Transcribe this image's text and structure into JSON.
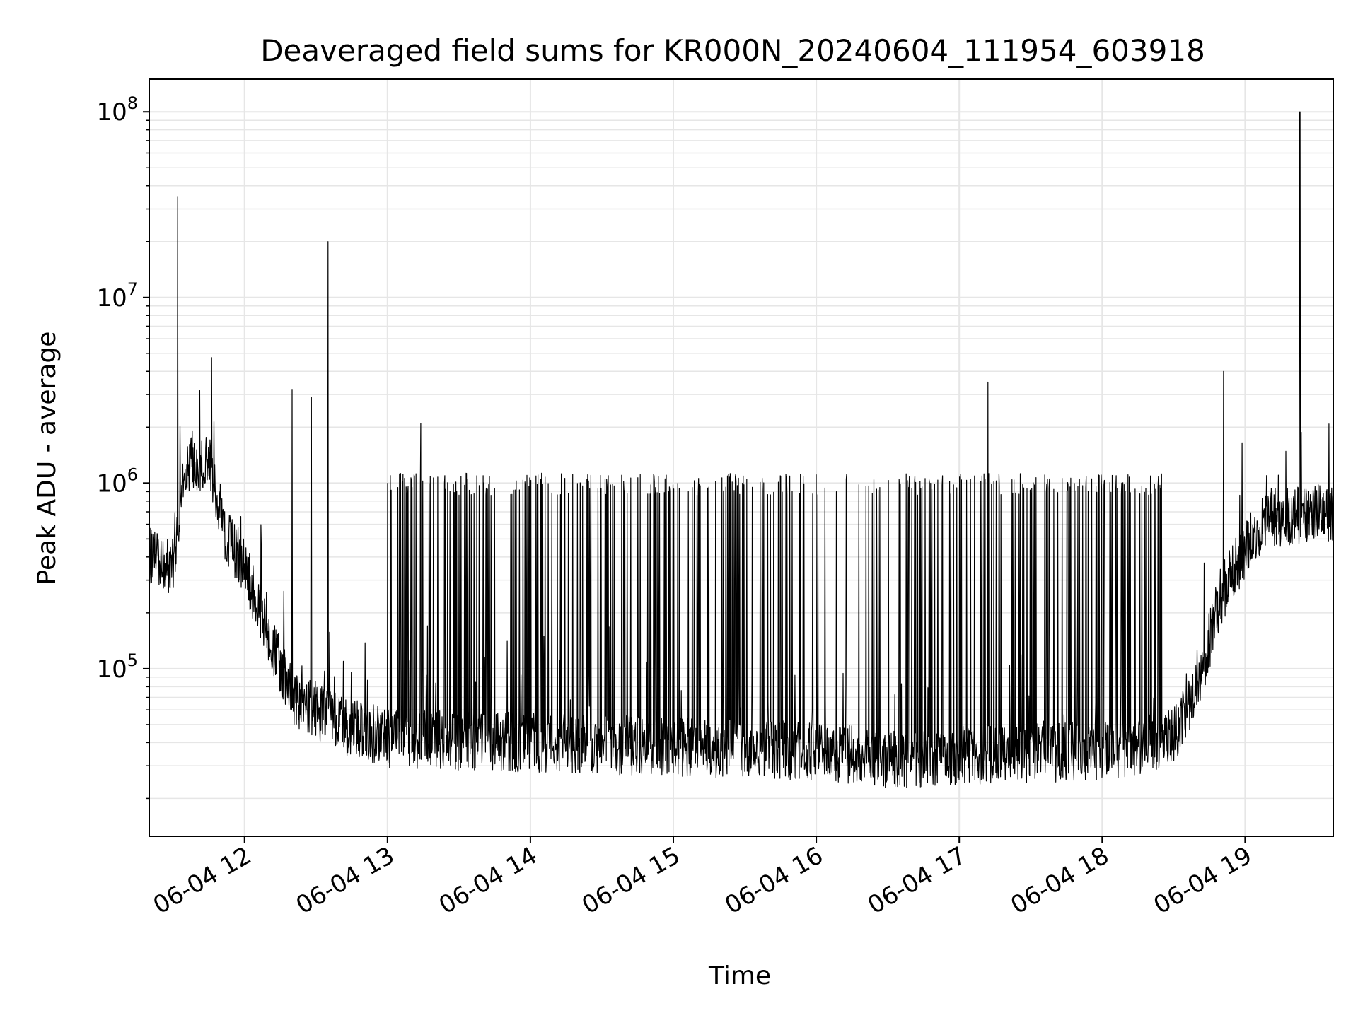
{
  "chart_data": {
    "type": "line",
    "title": "Deaveraged field sums for KR000N_20240604_111954_603918",
    "xlabel": "Time",
    "ylabel": "Peak ADU - average",
    "yscale": "log",
    "ylim": [
      12500,
      150000000
    ],
    "xlim": [
      "2024-06-04 11:20",
      "2024-06-04 19:37"
    ],
    "grid": true,
    "line_color": "#000000",
    "x_ticks": [
      {
        "time": "2024-06-04 12:00",
        "label": "06-04 12"
      },
      {
        "time": "2024-06-04 13:00",
        "label": "06-04 13"
      },
      {
        "time": "2024-06-04 14:00",
        "label": "06-04 14"
      },
      {
        "time": "2024-06-04 15:00",
        "label": "06-04 15"
      },
      {
        "time": "2024-06-04 16:00",
        "label": "06-04 16"
      },
      {
        "time": "2024-06-04 17:00",
        "label": "06-04 17"
      },
      {
        "time": "2024-06-04 18:00",
        "label": "06-04 18"
      },
      {
        "time": "2024-06-04 19:00",
        "label": "06-04 19"
      }
    ],
    "y_ticks": [
      {
        "value": 100000,
        "base": "10",
        "exp": "5"
      },
      {
        "value": 1000000,
        "base": "10",
        "exp": "6"
      },
      {
        "value": 10000000,
        "base": "10",
        "exp": "7"
      },
      {
        "value": 100000000,
        "base": "10",
        "exp": "8"
      }
    ],
    "baseline_profile": [
      {
        "time": "2024-06-04 11:20",
        "value": 400000
      },
      {
        "time": "2024-06-04 11:30",
        "value": 350000
      },
      {
        "time": "2024-06-04 11:35",
        "value": 1200000
      },
      {
        "time": "2024-06-04 11:45",
        "value": 1300000
      },
      {
        "time": "2024-06-04 11:50",
        "value": 600000
      },
      {
        "time": "2024-06-04 12:00",
        "value": 350000
      },
      {
        "time": "2024-06-04 12:10",
        "value": 150000
      },
      {
        "time": "2024-06-04 12:20",
        "value": 70000
      },
      {
        "time": "2024-06-04 12:40",
        "value": 50000
      },
      {
        "time": "2024-06-04 13:00",
        "value": 42000
      },
      {
        "time": "2024-06-04 14:00",
        "value": 40000
      },
      {
        "time": "2024-06-04 15:00",
        "value": 38000
      },
      {
        "time": "2024-06-04 16:00",
        "value": 36000
      },
      {
        "time": "2024-06-04 16:40",
        "value": 32000
      },
      {
        "time": "2024-06-04 17:00",
        "value": 34000
      },
      {
        "time": "2024-06-04 18:00",
        "value": 36000
      },
      {
        "time": "2024-06-04 18:30",
        "value": 42000
      },
      {
        "time": "2024-06-04 18:40",
        "value": 80000
      },
      {
        "time": "2024-06-04 18:50",
        "value": 250000
      },
      {
        "time": "2024-06-04 19:00",
        "value": 450000
      },
      {
        "time": "2024-06-04 19:10",
        "value": 650000
      },
      {
        "time": "2024-06-04 19:37",
        "value": 700000
      }
    ],
    "burst_level": 1000000,
    "burst_window": [
      "2024-06-04 13:00",
      "2024-06-04 18:25"
    ],
    "spikes": [
      {
        "time": "2024-06-04 11:32",
        "value": 35000000
      },
      {
        "time": "2024-06-04 12:35",
        "value": 20000000
      },
      {
        "time": "2024-06-04 12:20",
        "value": 3200000
      },
      {
        "time": "2024-06-04 12:28",
        "value": 2900000
      },
      {
        "time": "2024-06-04 13:14",
        "value": 2100000
      },
      {
        "time": "2024-06-04 17:12",
        "value": 3500000
      },
      {
        "time": "2024-06-04 18:51",
        "value": 4000000
      },
      {
        "time": "2024-06-04 19:23",
        "value": 100000000
      }
    ]
  }
}
